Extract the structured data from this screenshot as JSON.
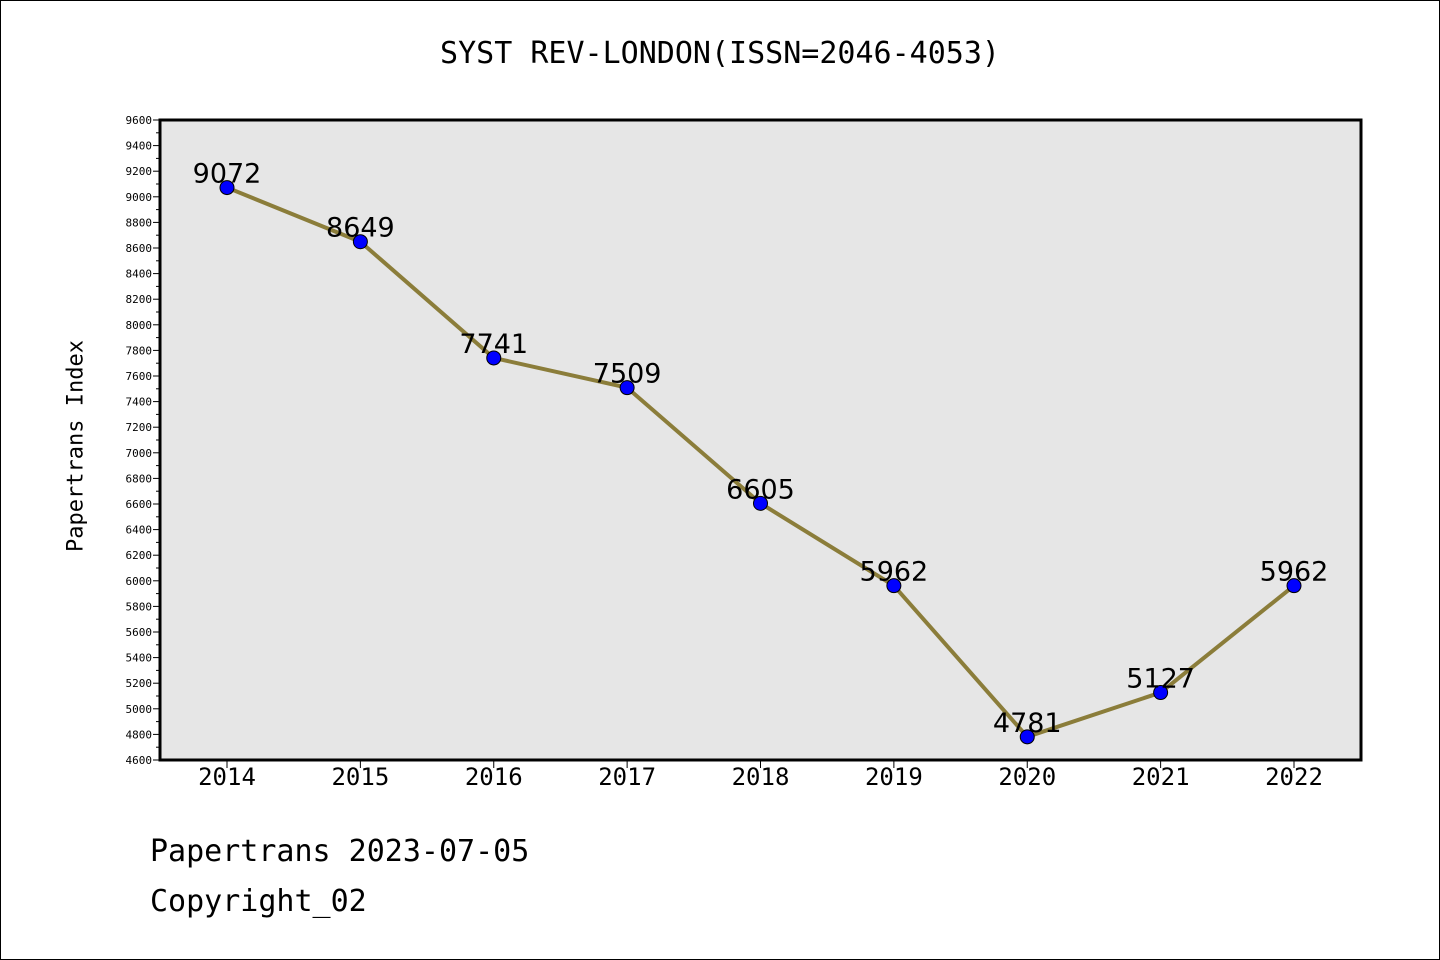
{
  "chart_data": {
    "type": "line",
    "title": "SYST REV-LONDON(ISSN=2046-4053)",
    "ylabel": "Papertrans Index",
    "xlabel": "",
    "categories": [
      "2014",
      "2015",
      "2016",
      "2017",
      "2018",
      "2019",
      "2020",
      "2021",
      "2022"
    ],
    "values": [
      9072,
      8649,
      7741,
      7509,
      6605,
      5962,
      4781,
      5127,
      5962
    ],
    "data_labels": [
      "9072",
      "8649",
      "7741",
      "7509",
      "6605",
      "5962",
      "4781",
      "5127",
      "5962"
    ],
    "ylim": [
      4600,
      9600
    ],
    "y_ticks": [
      "4600",
      "4800",
      "5000",
      "5200",
      "5400",
      "5600",
      "5800",
      "6000",
      "6200",
      "6400",
      "6600",
      "6800",
      "7000",
      "7200",
      "7400",
      "7600",
      "7800",
      "8000",
      "8200",
      "8400",
      "8600",
      "8800",
      "9000",
      "9200",
      "9400",
      "9600"
    ],
    "grid": false,
    "legend": "none",
    "colors": {
      "line": "#8B7D3A",
      "marker": "#0000FF",
      "marker_edge": "#000000",
      "plot_background": "#E6E6E6"
    }
  },
  "footer": {
    "line1": "Papertrans 2023-07-05",
    "line2": "Copyright_02"
  }
}
